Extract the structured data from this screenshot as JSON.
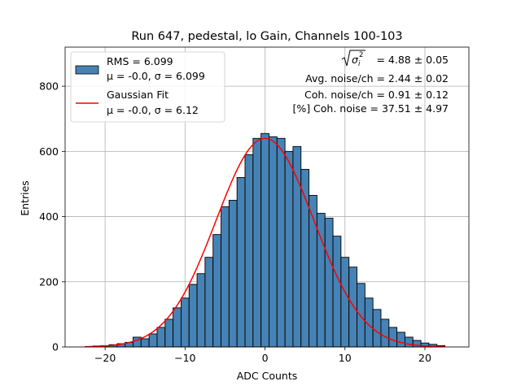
{
  "chart_data": {
    "type": "bar",
    "title": "Run 647, pedestal, lo Gain, Channels 100-103",
    "xlabel": "ADC Counts",
    "ylabel": "Entries",
    "xlim": [
      -25,
      25.5
    ],
    "ylim": [
      0,
      920
    ],
    "xticks": [
      -20,
      -10,
      0,
      10,
      20
    ],
    "xtick_labels": [
      "−20",
      "−10",
      "0",
      "10",
      "20"
    ],
    "yticks": [
      0,
      200,
      400,
      600,
      800
    ],
    "ytick_labels": [
      "0",
      "200",
      "400",
      "600",
      "800"
    ],
    "grid": true,
    "bar_color": "#4682b4",
    "fit_color": "#ff0000",
    "bin_edges": [
      -22.5,
      -21.5,
      -20.5,
      -19.5,
      -18.5,
      -17.5,
      -16.5,
      -15.5,
      -14.5,
      -13.5,
      -12.5,
      -11.5,
      -10.5,
      -9.5,
      -8.5,
      -7.5,
      -6.5,
      -5.5,
      -4.5,
      -3.5,
      -2.5,
      -1.5,
      -0.5,
      0.5,
      1.5,
      2.5,
      3.5,
      4.5,
      5.5,
      6.5,
      7.5,
      8.5,
      9.5,
      10.5,
      11.5,
      12.5,
      13.5,
      14.5,
      15.5,
      16.5,
      17.5,
      18.5,
      19.5,
      20.5,
      21.5,
      22.5
    ],
    "counts": [
      1,
      3,
      4,
      7,
      10,
      14,
      30,
      25,
      40,
      60,
      85,
      120,
      150,
      192,
      225,
      275,
      345,
      430,
      450,
      520,
      590,
      640,
      655,
      645,
      640,
      600,
      615,
      545,
      465,
      410,
      395,
      340,
      275,
      245,
      195,
      150,
      115,
      85,
      60,
      45,
      30,
      20,
      12,
      8,
      4
    ],
    "series": [
      {
        "name": "RMS = 6.099",
        "name_line2": "μ = -0.0, σ = 6.099",
        "kind": "histogram"
      },
      {
        "name": "Gaussian Fit",
        "name_line2": "μ = -0.0, σ = 6.12",
        "kind": "line",
        "mu": 0.0,
        "sigma": 6.12,
        "amplitude": 640,
        "x_range": [
          -22.5,
          22.5
        ]
      }
    ],
    "annotations": {
      "sqrt_text": "= 4.88 ± 0.05",
      "avg_noise": "Avg. noise/ch = 2.44 ± 0.02",
      "coh_noise": "Coh. noise/ch = 0.91 ± 0.12",
      "pct_coh_noise": "[%] Coh. noise = 37.51 ± 4.97"
    },
    "legend_position": "upper-left"
  }
}
